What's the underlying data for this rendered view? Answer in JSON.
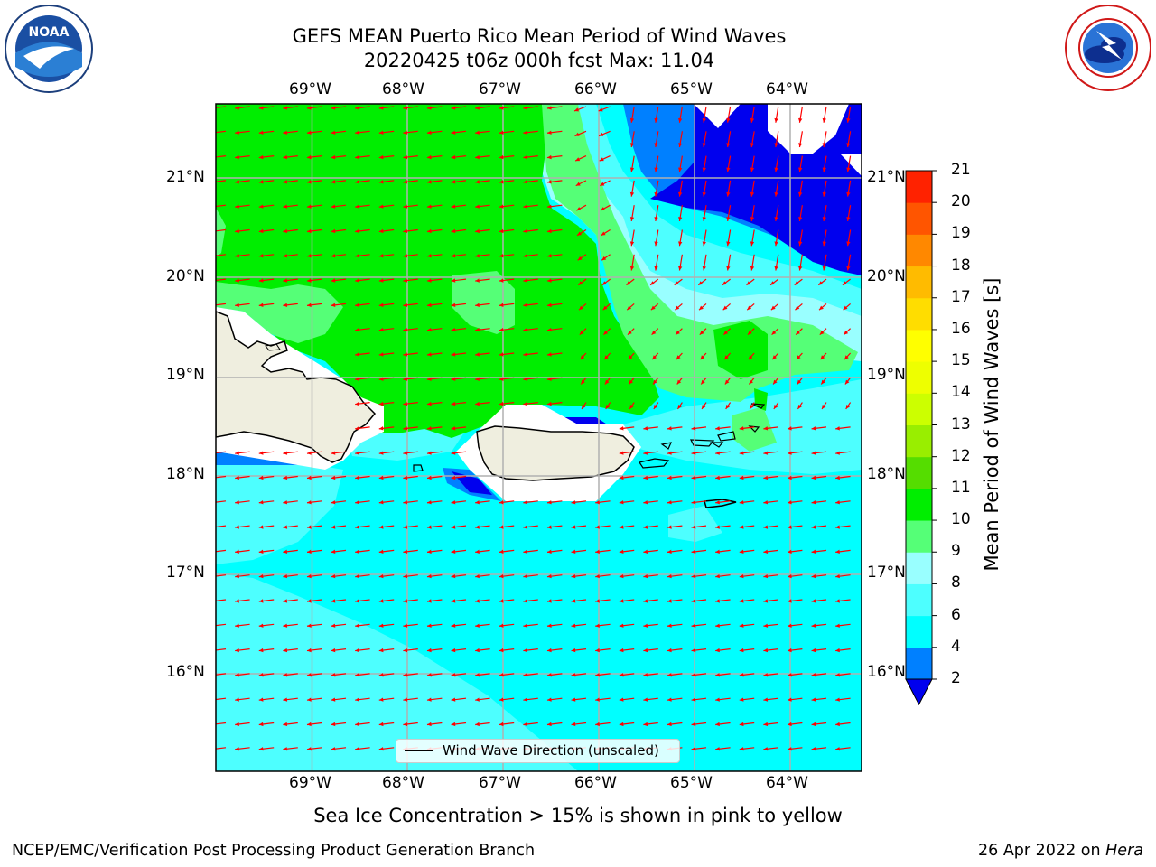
{
  "header": {
    "title_line1": "GEFS MEAN Puerto Rico Mean Period of Wind Waves",
    "title_line2": "20220425 t06z 000h fcst   Max: 11.04"
  },
  "logos": {
    "left": {
      "text": "NOAA",
      "ring_text": "NATIONAL OCEANIC AND ATMOSPHERIC ADMINISTRATION · U.S. DEPARTMENT OF COMMERCE"
    },
    "right": {
      "ring_text": "NATIONAL WEATHER SERVICE"
    }
  },
  "map": {
    "lon_ticks": [
      "69°W",
      "68°W",
      "67°W",
      "66°W",
      "65°W",
      "64°W"
    ],
    "lat_ticks": [
      "21°N",
      "20°N",
      "19°N",
      "18°N",
      "17°N",
      "16°N"
    ],
    "legend_label": "Wind Wave Direction (unscaled)",
    "arrow_color": "#ff0000",
    "land_color": "#efeedf"
  },
  "colorbar": {
    "label": "Mean Period of Wind Waves [s]",
    "ticks": [
      "2",
      "4",
      "6",
      "8",
      "9",
      "10",
      "11",
      "12",
      "13",
      "14",
      "15",
      "16",
      "17",
      "18",
      "19",
      "20",
      "21"
    ],
    "colors": [
      "#0000ee",
      "#0080ff",
      "#00ffff",
      "#4dffff",
      "#99ffff",
      "#55ff77",
      "#00ee00",
      "#55dd00",
      "#99ee00",
      "#ccff00",
      "#eeff00",
      "#ffff00",
      "#ffdd00",
      "#ffbb00",
      "#ff8800",
      "#ff5500",
      "#ff2200",
      "#ff0000"
    ]
  },
  "caption": "Sea Ice Concentration > 15% is shown in pink to yellow",
  "footer": {
    "left": "NCEP/EMC/Verification Post Processing Product Generation Branch",
    "right_prefix": "26 Apr 2022 on ",
    "right_system": "Hera"
  }
}
